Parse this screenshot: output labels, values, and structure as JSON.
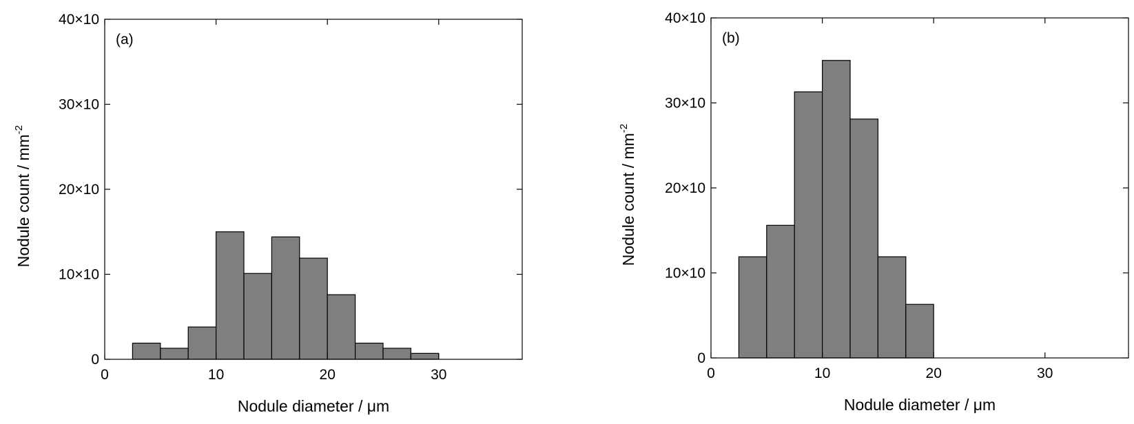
{
  "chart_data": [
    {
      "type": "bar",
      "panel_label": "(a)",
      "xlabel": "Nodule diameter / μm",
      "ylabel": "Nodule count / mm",
      "ylabel_superscript": "-2",
      "xlim": [
        0,
        37.5
      ],
      "ylim": [
        0,
        400
      ],
      "xticks": [
        0,
        10,
        20,
        30
      ],
      "xtick_labels": [
        "0",
        "10",
        "20",
        "30"
      ],
      "yticks": [
        0,
        100,
        200,
        300,
        400
      ],
      "ytick_labels": [
        "0",
        "10×10",
        "20×10",
        "30×10",
        "40×10"
      ],
      "bin_width": 2.5,
      "bin_starts": [
        2.5,
        5,
        7.5,
        10,
        12.5,
        15,
        17.5,
        20,
        22.5,
        25,
        27.5
      ],
      "values": [
        19,
        13,
        38,
        150,
        101,
        144,
        119,
        76,
        19,
        13,
        7
      ],
      "grid": false,
      "legend": "none"
    },
    {
      "type": "bar",
      "panel_label": "(b)",
      "xlabel": "Nodule diameter / μm",
      "ylabel": "Nodule count / mm",
      "ylabel_superscript": "-2",
      "xlim": [
        0,
        37.5
      ],
      "ylim": [
        0,
        400
      ],
      "xticks": [
        0,
        10,
        20,
        30
      ],
      "xtick_labels": [
        "0",
        "10",
        "20",
        "30"
      ],
      "yticks": [
        0,
        100,
        200,
        300,
        400
      ],
      "ytick_labels": [
        "0",
        "10×10",
        "20×10",
        "30×10",
        "40×10"
      ],
      "bin_width": 2.5,
      "bin_starts": [
        2.5,
        5,
        7.5,
        10,
        12.5,
        15,
        17.5
      ],
      "values": [
        119,
        156,
        313,
        350,
        281,
        119,
        63
      ],
      "grid": false,
      "legend": "none"
    }
  ]
}
